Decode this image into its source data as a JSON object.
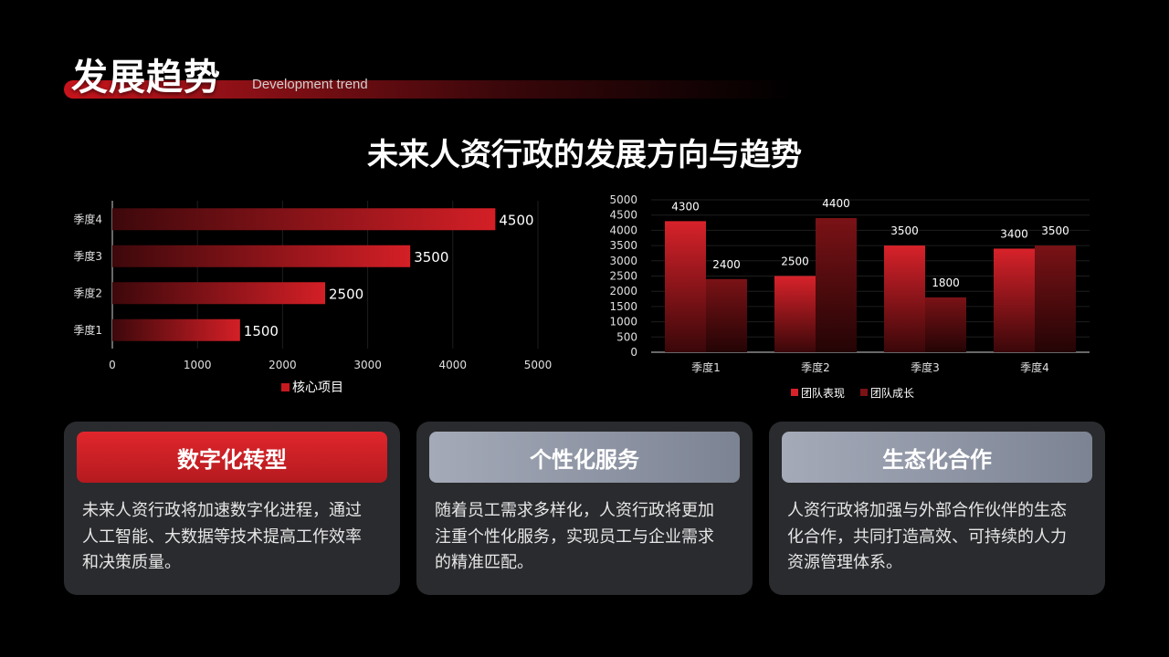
{
  "header": {
    "title": "发展趋势",
    "subtitle": "Development trend"
  },
  "main": {
    "heading": "未来人资行政的发展方向与趋势"
  },
  "chart_data": [
    {
      "type": "bar",
      "orientation": "horizontal",
      "categories": [
        "季度1",
        "季度2",
        "季度3",
        "季度4"
      ],
      "series": [
        {
          "name": "核心项目",
          "values": [
            1500,
            2500,
            3500,
            4500
          ],
          "color": "#c8191f"
        }
      ],
      "x_ticks": [
        "0",
        "1000",
        "2000",
        "3000",
        "4000",
        "5000"
      ],
      "xlim": [
        0,
        5000
      ],
      "legend_position": "bottom",
      "data_labels": true,
      "grid": true
    },
    {
      "type": "bar",
      "orientation": "vertical",
      "categories": [
        "季度1",
        "季度2",
        "季度3",
        "季度4"
      ],
      "series": [
        {
          "name": "团队表现",
          "values": [
            4300,
            2500,
            3500,
            3400
          ],
          "color": "#d8222a"
        },
        {
          "name": "团队成长",
          "values": [
            2400,
            4400,
            1800,
            3500
          ],
          "color": "#7a1216"
        }
      ],
      "y_ticks": [
        "0",
        "500",
        "1000",
        "1500",
        "2000",
        "2500",
        "3000",
        "3500",
        "4000",
        "4500",
        "5000"
      ],
      "ylim": [
        0,
        5000
      ],
      "legend_position": "bottom",
      "data_labels": true,
      "grid": true
    }
  ],
  "cards": [
    {
      "title": "数字化转型",
      "style": "red",
      "lines": [
        "未来人资行政将加速数字化进程，通过",
        "人工智能、大数据等技术提高工作效率",
        "和决策质量。"
      ]
    },
    {
      "title": "个性化服务",
      "style": "grey",
      "lines": [
        "随着员工需求多样化，人资行政将更加",
        "注重个性化服务，实现员工与企业需求",
        "的精准匹配。"
      ]
    },
    {
      "title": "生态化合作",
      "style": "grey",
      "lines": [
        "人资行政将加强与外部合作伙伴的生态",
        "化合作，共同打造高效、可持续的人力",
        "资源管理体系。"
      ]
    }
  ]
}
